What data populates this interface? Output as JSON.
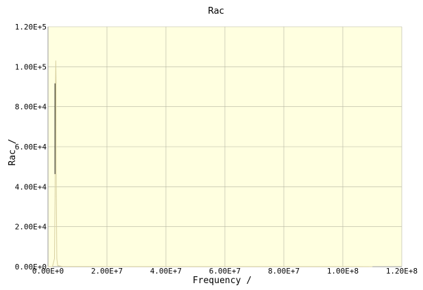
{
  "chart_data": {
    "type": "line",
    "title": "Rac",
    "xlabel": "Frequency /",
    "ylabel": "Rac /",
    "xlim": [
      0,
      120000000
    ],
    "ylim": [
      0,
      120000
    ],
    "x_ticks": [
      "0.00E+0",
      "2.00E+7",
      "4.00E+7",
      "6.00E+7",
      "8.00E+7",
      "1.00E+8",
      "1.20E+8"
    ],
    "y_ticks": [
      "0.00E+0",
      "2.00E+4",
      "4.00E+4",
      "6.00E+4",
      "8.00E+4",
      "1.00E+5",
      "1.20E+5"
    ],
    "grid": true,
    "colors": {
      "plot_background": "#ffffe0",
      "grid": "#b4b4a0",
      "axis": "#9a9a9a",
      "series_main": "#d8d0a0",
      "series_peak": "#000000"
    },
    "series": [
      {
        "x": [
          0,
          1500000,
          2200000,
          2400000,
          2550000,
          2650000,
          2750000,
          2850000,
          3000000,
          3300000,
          5000000,
          20000000,
          60000000,
          110000000
        ],
        "values": [
          0,
          0,
          4000,
          35000,
          92000,
          103000,
          92000,
          35000,
          4000,
          500,
          100,
          50,
          30,
          20
        ]
      }
    ]
  }
}
